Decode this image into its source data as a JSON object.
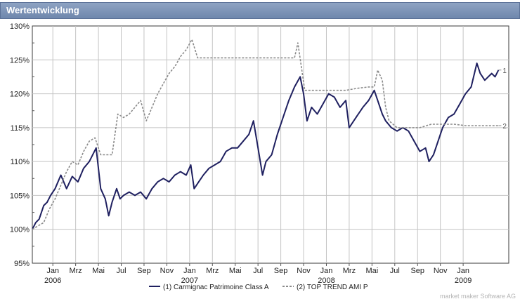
{
  "header": {
    "title": "Wertentwicklung"
  },
  "chart_data": {
    "type": "line",
    "title": "Wertentwicklung",
    "xlabel": "",
    "ylabel": "",
    "ylim": [
      95,
      130
    ],
    "y_ticks": [
      "130%",
      "125%",
      "120%",
      "115%",
      "110%",
      "105%",
      "100%",
      "95%"
    ],
    "y_tick_values": [
      130,
      125,
      120,
      115,
      110,
      105,
      100,
      95
    ],
    "x_ticks": [
      {
        "label": "Jan",
        "t": 0.8
      },
      {
        "label": "Mrz",
        "t": 2.8
      },
      {
        "label": "Mai",
        "t": 4.8
      },
      {
        "label": "Jul",
        "t": 6.8
      },
      {
        "label": "Sep",
        "t": 8.8
      },
      {
        "label": "Nov",
        "t": 10.8
      },
      {
        "label": "Jan",
        "t": 12.8
      },
      {
        "label": "Mrz",
        "t": 14.8
      },
      {
        "label": "Mai",
        "t": 16.8
      },
      {
        "label": "Jul",
        "t": 18.8
      },
      {
        "label": "Sep",
        "t": 20.8
      },
      {
        "label": "Nov",
        "t": 22.8
      },
      {
        "label": "Jan",
        "t": 24.8
      },
      {
        "label": "Mrz",
        "t": 26.8
      },
      {
        "label": "Mai",
        "t": 28.8
      },
      {
        "label": "Jul",
        "t": 30.8
      },
      {
        "label": "Sep",
        "t": 32.8
      },
      {
        "label": "Nov",
        "t": 34.8
      },
      {
        "label": "Jan",
        "t": 36.8
      }
    ],
    "year_labels": [
      {
        "label": "2006",
        "t": 0.8
      },
      {
        "label": "2007",
        "t": 12.8
      },
      {
        "label": "2008",
        "t": 24.8
      },
      {
        "label": "2009",
        "t": 36.8
      }
    ],
    "t_range": [
      -1,
      40.8
    ],
    "grid": true,
    "legend_position": "bottom",
    "series": [
      {
        "name": "Carmignac Patrimoine Class A",
        "legend_label": "(1) Carmignac Patrimoine Class A",
        "end_label": "1",
        "color": "#1f2060",
        "dash": "",
        "points": [
          [
            -1,
            100
          ],
          [
            -0.7,
            101
          ],
          [
            -0.4,
            101.5
          ],
          [
            0,
            103.5
          ],
          [
            0.3,
            104
          ],
          [
            0.6,
            105
          ],
          [
            1,
            106
          ],
          [
            1.5,
            108
          ],
          [
            2,
            106
          ],
          [
            2.5,
            107.8
          ],
          [
            3,
            107
          ],
          [
            3.5,
            109
          ],
          [
            4,
            110
          ],
          [
            4.6,
            112
          ],
          [
            5,
            106
          ],
          [
            5.4,
            104.5
          ],
          [
            5.7,
            102
          ],
          [
            6,
            104
          ],
          [
            6.4,
            106
          ],
          [
            6.7,
            104.5
          ],
          [
            7,
            105
          ],
          [
            7.5,
            105.5
          ],
          [
            8,
            105
          ],
          [
            8.5,
            105.5
          ],
          [
            9,
            104.5
          ],
          [
            9.5,
            106
          ],
          [
            10,
            107
          ],
          [
            10.5,
            107.5
          ],
          [
            11,
            107
          ],
          [
            11.5,
            108
          ],
          [
            12,
            108.5
          ],
          [
            12.5,
            108
          ],
          [
            12.9,
            109.5
          ],
          [
            13.2,
            106
          ],
          [
            13.6,
            107
          ],
          [
            14,
            108
          ],
          [
            14.5,
            109
          ],
          [
            15,
            109.5
          ],
          [
            15.5,
            110
          ],
          [
            16,
            111.5
          ],
          [
            16.5,
            112
          ],
          [
            17,
            112
          ],
          [
            17.5,
            113
          ],
          [
            18,
            114
          ],
          [
            18.4,
            116
          ],
          [
            18.8,
            112
          ],
          [
            19.2,
            108
          ],
          [
            19.5,
            110
          ],
          [
            20,
            111
          ],
          [
            20.5,
            114
          ],
          [
            21,
            116.5
          ],
          [
            21.5,
            119
          ],
          [
            22,
            121
          ],
          [
            22.5,
            122.5
          ],
          [
            22.8,
            120
          ],
          [
            23.1,
            116
          ],
          [
            23.5,
            118
          ],
          [
            24,
            117
          ],
          [
            24.5,
            118.5
          ],
          [
            25,
            120
          ],
          [
            25.5,
            119.5
          ],
          [
            26,
            118
          ],
          [
            26.5,
            119
          ],
          [
            26.8,
            115
          ],
          [
            27.2,
            116
          ],
          [
            27.6,
            117
          ],
          [
            28,
            118
          ],
          [
            28.5,
            119
          ],
          [
            29,
            120.5
          ],
          [
            29.3,
            119
          ],
          [
            29.7,
            117
          ],
          [
            30,
            116
          ],
          [
            30.5,
            115
          ],
          [
            31,
            114.5
          ],
          [
            31.5,
            115
          ],
          [
            32,
            114.5
          ],
          [
            32.5,
            113
          ],
          [
            33,
            111.5
          ],
          [
            33.5,
            112
          ],
          [
            33.8,
            110
          ],
          [
            34.2,
            111
          ],
          [
            34.6,
            113
          ],
          [
            35,
            115
          ],
          [
            35.5,
            116.5
          ],
          [
            36,
            117
          ],
          [
            36.5,
            118.5
          ],
          [
            37,
            120
          ],
          [
            37.5,
            121
          ],
          [
            38,
            124.5
          ],
          [
            38.3,
            123
          ],
          [
            38.7,
            122
          ],
          [
            39,
            122.5
          ],
          [
            39.3,
            123
          ],
          [
            39.6,
            122.5
          ],
          [
            39.9,
            123.5
          ]
        ]
      },
      {
        "name": "TOP TREND AMI P",
        "legend_label": "(2) TOP TREND AMI P",
        "end_label": "2",
        "color": "#8a8a8a",
        "dash": "3,2",
        "points": [
          [
            -1,
            100
          ],
          [
            -0.5,
            100.5
          ],
          [
            0,
            101
          ],
          [
            0.5,
            103
          ],
          [
            1,
            104.5
          ],
          [
            1.5,
            106.5
          ],
          [
            2,
            108.5
          ],
          [
            2.5,
            110
          ],
          [
            3,
            109.5
          ],
          [
            3.5,
            111.5
          ],
          [
            4,
            113
          ],
          [
            4.5,
            113.5
          ],
          [
            5,
            111
          ],
          [
            6,
            111
          ],
          [
            6.5,
            117
          ],
          [
            7,
            116.5
          ],
          [
            7.5,
            117
          ],
          [
            8,
            118
          ],
          [
            8.5,
            119
          ],
          [
            9,
            116
          ],
          [
            9.5,
            118
          ],
          [
            10,
            120
          ],
          [
            10.5,
            121.5
          ],
          [
            11,
            123
          ],
          [
            11.5,
            124
          ],
          [
            12,
            125.5
          ],
          [
            12.5,
            126.5
          ],
          [
            13,
            128
          ],
          [
            13.5,
            125.3
          ],
          [
            15,
            125.3
          ],
          [
            17,
            125.3
          ],
          [
            19,
            125.3
          ],
          [
            21,
            125.3
          ],
          [
            22,
            125.3
          ],
          [
            22.3,
            127.5
          ],
          [
            22.6,
            124
          ],
          [
            22.9,
            120.5
          ],
          [
            23.5,
            120.5
          ],
          [
            24.5,
            120.5
          ],
          [
            25.5,
            120.5
          ],
          [
            26.5,
            120.5
          ],
          [
            27.5,
            120.8
          ],
          [
            28.5,
            121
          ],
          [
            29,
            121
          ],
          [
            29.3,
            123.5
          ],
          [
            29.7,
            122
          ],
          [
            30,
            118
          ],
          [
            30.3,
            116
          ],
          [
            31,
            115
          ],
          [
            32,
            115
          ],
          [
            33,
            115
          ],
          [
            34,
            115.5
          ],
          [
            35,
            115.5
          ],
          [
            36,
            115.5
          ],
          [
            37,
            115.3
          ],
          [
            38,
            115.3
          ],
          [
            39,
            115.3
          ],
          [
            39.9,
            115.3
          ]
        ]
      }
    ]
  },
  "footer": {
    "credit": "market maker Software AG"
  }
}
